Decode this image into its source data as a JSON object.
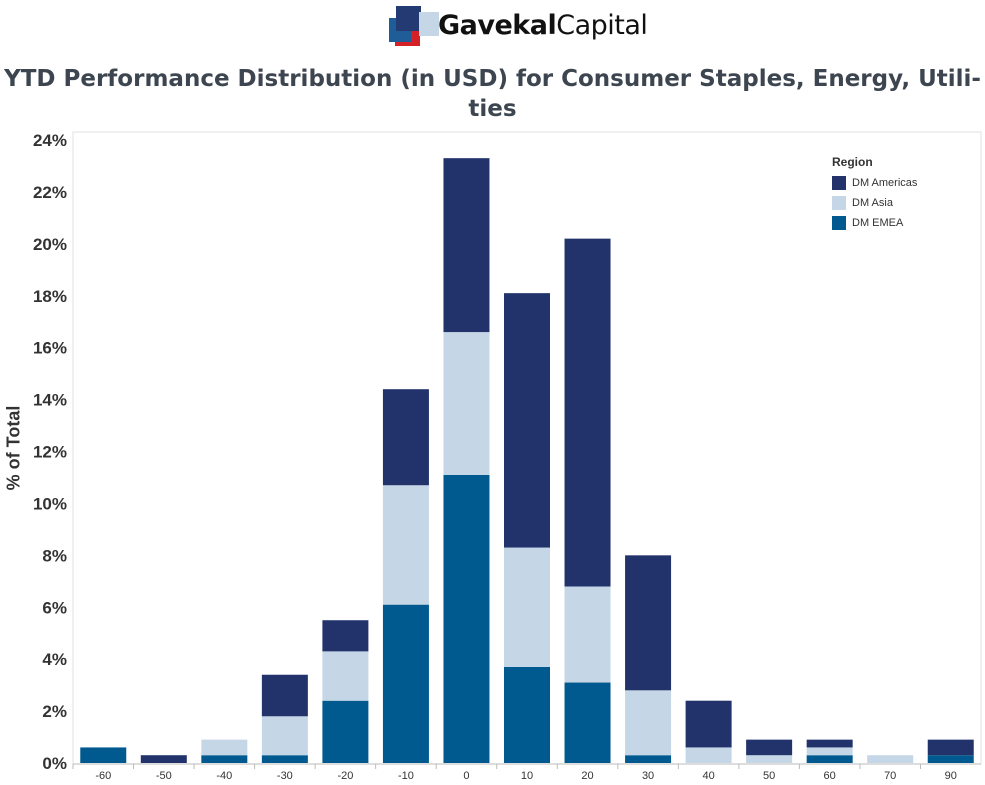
{
  "header": {
    "logo_name_part1": "Gavekal",
    "logo_name_part2": "Capital"
  },
  "chart_data": {
    "type": "bar",
    "stacked": true,
    "title": "YTD Performance Distribution (in USD) for Consumer Staples, Energy, Utili-",
    "title_line2": "ties",
    "xlabel": "",
    "ylabel": "% of Total",
    "ylim": [
      0,
      24
    ],
    "yticks": [
      0,
      2,
      4,
      6,
      8,
      10,
      12,
      14,
      16,
      18,
      20,
      22,
      24
    ],
    "ytick_labels": [
      "0%",
      "2%",
      "4%",
      "6%",
      "8%",
      "10%",
      "12%",
      "14%",
      "16%",
      "18%",
      "20%",
      "22%",
      "24%"
    ],
    "categories": [
      "-60",
      "-50",
      "-40",
      "-30",
      "-20",
      "-10",
      "0",
      "10",
      "20",
      "30",
      "40",
      "50",
      "60",
      "70",
      "90"
    ],
    "legend": {
      "title": "Region",
      "position": "top-right"
    },
    "series": [
      {
        "name": "DM EMEA",
        "color": "#005a8f",
        "values": [
          0.6,
          0,
          0.3,
          0.3,
          2.4,
          6.1,
          11.1,
          3.7,
          3.1,
          0.3,
          0,
          0,
          0.3,
          0,
          0.3
        ]
      },
      {
        "name": "DM Asia",
        "color": "#c5d6e6",
        "values": [
          0,
          0,
          0.6,
          1.5,
          1.9,
          4.6,
          5.5,
          4.6,
          3.7,
          2.5,
          0.6,
          0.3,
          0.3,
          0.3,
          0
        ]
      },
      {
        "name": "DM Americas",
        "color": "#22336b",
        "values": [
          0,
          0.3,
          0,
          1.6,
          1.2,
          3.7,
          6.7,
          9.8,
          13.4,
          5.2,
          1.8,
          0.6,
          0.3,
          0,
          0.6
        ]
      }
    ],
    "legend_order": [
      "DM Americas",
      "DM Asia",
      "DM EMEA"
    ]
  }
}
